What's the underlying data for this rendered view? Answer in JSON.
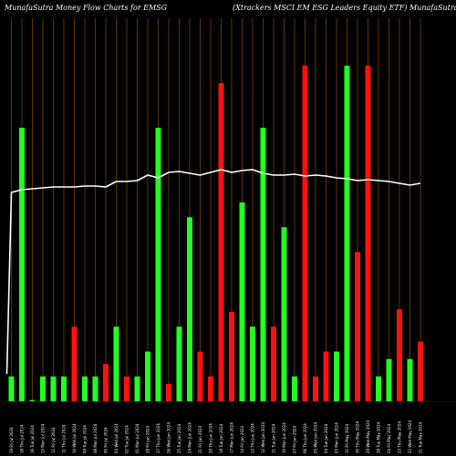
{
  "header": {
    "left_title": "MunafaSutra  Money Flow  Charts for EMSG",
    "right_title": "(Xtrackers MSCI EM ESG Leaders Equity ETF)  MunafaSutra.com"
  },
  "chart_data": {
    "type": "bar",
    "title": "MunafaSutra  Money Flow  Charts for EMSG",
    "subtitle": "(Xtrackers MSCI EM ESG Leaders Equity ETF)  MunafaSutra.com",
    "xlabel": "",
    "ylabel": "",
    "grid": "vertical",
    "background": "#000000",
    "colors": {
      "up": "#22ff22",
      "down": "#ff1111",
      "grid": "#8b4a0a",
      "line": "#ffffff"
    },
    "categories": [
      "19 Fri Jul 2024",
      "18 Thu Jul 2024",
      "16 Tue Jul 2024",
      "15 Mon Jul 2024",
      "12 Fri Jul 2024",
      "11 Thu Jul 2024",
      "10 Wed Jul 2024",
      "09 Tue Jul 2024",
      "08 Mon Jul 2024",
      "05 Fri Jul 2024",
      "03 Wed Jul 2024",
      "02 Tue Jul 2024",
      "01 Mon Jul 2024",
      "28 Fri Jun 2024",
      "27 Thu Jun 2024",
      "26 Wed Jun 2024",
      "25 Tue Jun 2024",
      "24 Mon Jun 2024",
      "21 Fri Jun 2024",
      "20 Thu Jun 2024",
      "18 Tue Jun 2024",
      "17 Mon Jun 2024",
      "14 Fri Jun 2024",
      "13 Thu Jun 2024",
      "12 Wed Jun 2024",
      "11 Tue Jun 2024",
      "10 Mon Jun 2024",
      "07 Fri Jun 2024",
      "06 Thu Jun 2024",
      "05 Wed Jun 2024",
      "04 Tue Jun 2024",
      "03 Mon Jun 2024",
      "31 Fri May 2024",
      "30 Thu May 2024",
      "29 Wed May 2024",
      "28 Tue May 2024",
      "24 Fri May 2024",
      "23 Thu May 2024",
      "22 Wed May 2024",
      "21 Tue May 2024"
    ],
    "bar_values": [
      10,
      110,
      0.5,
      10,
      10,
      10,
      30,
      10,
      10,
      15,
      30,
      10,
      10,
      20,
      110,
      7,
      30,
      74,
      20,
      10,
      128,
      36,
      80,
      30,
      110,
      30,
      70,
      10,
      135,
      10,
      20,
      20,
      135,
      60,
      135,
      10,
      17,
      37,
      17,
      24
    ],
    "bar_direction": [
      "up",
      "up",
      "up",
      "up",
      "up",
      "up",
      "down",
      "up",
      "up",
      "down",
      "up",
      "down",
      "up",
      "up",
      "up",
      "down",
      "up",
      "up",
      "down",
      "down",
      "down",
      "down",
      "up",
      "up",
      "up",
      "down",
      "up",
      "up",
      "down",
      "down",
      "down",
      "up",
      "up",
      "down",
      "down",
      "up",
      "up",
      "down",
      "up",
      "down"
    ],
    "line_values": [
      229,
      232,
      233,
      234,
      235,
      235,
      235,
      236,
      236,
      235,
      241,
      241,
      242,
      248,
      245,
      251,
      252,
      250,
      248,
      251,
      254,
      251,
      253,
      254,
      250,
      248,
      248,
      249,
      247,
      248,
      247,
      245,
      244,
      242,
      243,
      242,
      241,
      239,
      237,
      239
    ],
    "line_start": 30,
    "ylim": [
      0,
      135
    ]
  }
}
